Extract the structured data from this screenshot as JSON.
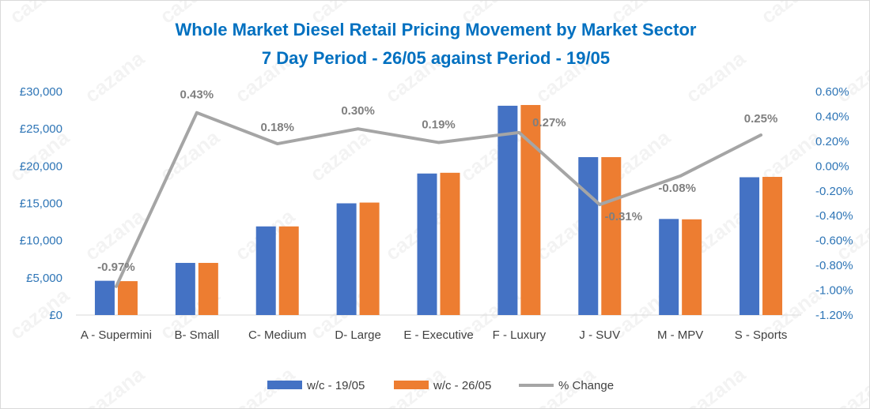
{
  "watermark": "cazana",
  "chart_data": {
    "type": "bar",
    "title": "Whole Market Diesel Retail Pricing Movement by Market Sector",
    "subtitle": "7 Day Period - 26/05 against Period - 19/05",
    "categories": [
      "A - Supermini",
      "B- Small",
      "C- Medium",
      "D- Large",
      "E - Executive",
      "F - Luxury",
      "J - SUV",
      "M - MPV",
      "S - Sports"
    ],
    "series": [
      {
        "name": "w/c - 19/05",
        "type": "bar",
        "axis": "left",
        "color": "#4472c4",
        "values": [
          4600,
          7000,
          11900,
          15000,
          19000,
          28100,
          21200,
          12900,
          18500
        ]
      },
      {
        "name": "w/c - 26/05",
        "type": "bar",
        "axis": "left",
        "color": "#ed7d31",
        "values": [
          4550,
          7000,
          11900,
          15100,
          19100,
          28200,
          21200,
          12850,
          18550
        ]
      },
      {
        "name": "% Change",
        "type": "line",
        "axis": "right",
        "color": "#a5a5a5",
        "values": [
          -0.97,
          0.43,
          0.18,
          0.3,
          0.19,
          0.27,
          -0.31,
          -0.08,
          0.25
        ],
        "labels": [
          "-0.97%",
          "0.43%",
          "0.18%",
          "0.30%",
          "0.19%",
          "0.27%",
          "-0.31%",
          "-0.08%",
          "0.25%"
        ]
      }
    ],
    "y_left": {
      "min": 0,
      "max": 30000,
      "step": 5000,
      "tick_labels": [
        "£0",
        "£5,000",
        "£10,000",
        "£15,000",
        "£20,000",
        "£25,000",
        "£30,000"
      ]
    },
    "y_right": {
      "min": -1.2,
      "max": 0.6,
      "step": 0.2,
      "tick_labels": [
        "-1.20%",
        "-1.00%",
        "-0.80%",
        "-0.60%",
        "-0.40%",
        "-0.20%",
        "0.00%",
        "0.20%",
        "0.40%",
        "0.60%"
      ]
    },
    "grid": false,
    "legend_position": "bottom"
  }
}
